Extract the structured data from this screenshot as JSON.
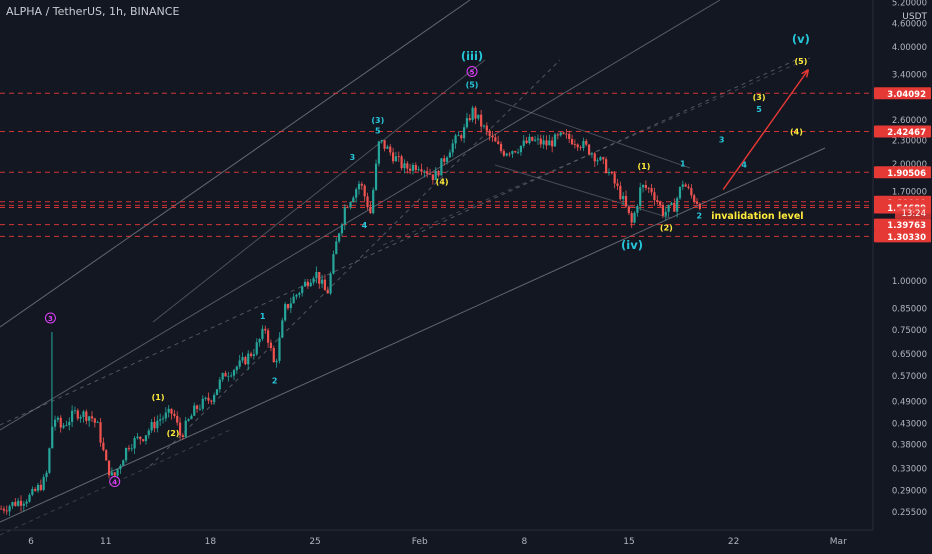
{
  "header": {
    "symbol": "ALPHA / TetherUS",
    "interval": "1h",
    "exchange": "BINANCE",
    "currency": "USDT"
  },
  "colors": {
    "background": "#131722",
    "up_candle": "#26a69a",
    "down_candle": "#ef5350",
    "wave_cyan": "#26c6da",
    "wave_yellow": "#ffeb3b",
    "wave_magenta": "#e040fb",
    "level_red": "#e53935",
    "trend_line": "#787b86",
    "target_arrow": "#e53935"
  },
  "chart_data": {
    "type": "candlestick",
    "y_scale": "log",
    "y_ticks": [
      "5.20000",
      "4.60000",
      "4.00000",
      "3.40000",
      "2.60000",
      "2.30000",
      "2.00000",
      "1.70000",
      "1.00000",
      "0.85000",
      "0.75000",
      "0.65000",
      "0.57000",
      "0.49000",
      "0.43000",
      "0.38000",
      "0.33000",
      "0.29000",
      "0.25500"
    ],
    "y_tick_values": [
      5.2,
      4.6,
      4.0,
      3.4,
      2.6,
      2.3,
      2.0,
      1.7,
      1.0,
      0.85,
      0.75,
      0.65,
      0.57,
      0.49,
      0.43,
      0.38,
      0.33,
      0.29,
      0.255
    ],
    "x_ticks": [
      {
        "label": "6",
        "day": 6
      },
      {
        "label": "11",
        "day": 11
      },
      {
        "label": "18",
        "day": 18
      },
      {
        "label": "25",
        "day": 25
      },
      {
        "label": "Feb",
        "day": 32
      },
      {
        "label": "8",
        "day": 39
      },
      {
        "label": "15",
        "day": 46
      },
      {
        "label": "22",
        "day": 53
      },
      {
        "label": "Mar",
        "day": 60
      }
    ],
    "price_levels": [
      {
        "label": "3.04092",
        "value": 3.04092
      },
      {
        "label": "2.42467",
        "value": 2.42467
      },
      {
        "label": "1.90506",
        "value": 1.90506
      },
      {
        "label": "1.60000",
        "value": 1.6
      },
      {
        "label": "1.56629",
        "value": 1.56629
      },
      {
        "label": "1.54689",
        "value": 1.54689
      },
      {
        "label": "1.39763",
        "value": 1.39763
      },
      {
        "label": "1.30330",
        "value": 1.3033
      }
    ],
    "countdown": "13:24",
    "price_path": [
      {
        "day": 4.0,
        "price": 0.26
      },
      {
        "day": 5.0,
        "price": 0.27
      },
      {
        "day": 6.0,
        "price": 0.28
      },
      {
        "day": 7.0,
        "price": 0.31
      },
      {
        "day": 7.5,
        "price": 0.45
      },
      {
        "day": 8.0,
        "price": 0.42
      },
      {
        "day": 9.0,
        "price": 0.46
      },
      {
        "day": 10.0,
        "price": 0.45
      },
      {
        "day": 10.5,
        "price": 0.42
      },
      {
        "day": 11.0,
        "price": 0.34
      },
      {
        "day": 11.5,
        "price": 0.31
      },
      {
        "day": 12.5,
        "price": 0.38
      },
      {
        "day": 13.5,
        "price": 0.4
      },
      {
        "day": 14.5,
        "price": 0.44
      },
      {
        "day": 15.5,
        "price": 0.46
      },
      {
        "day": 16.0,
        "price": 0.4
      },
      {
        "day": 17.0,
        "price": 0.47
      },
      {
        "day": 18.0,
        "price": 0.5
      },
      {
        "day": 19.0,
        "price": 0.58
      },
      {
        "day": 20.0,
        "price": 0.61
      },
      {
        "day": 21.0,
        "price": 0.67
      },
      {
        "day": 21.7,
        "price": 0.76
      },
      {
        "day": 22.3,
        "price": 0.6
      },
      {
        "day": 23.0,
        "price": 0.85
      },
      {
        "day": 24.0,
        "price": 0.95
      },
      {
        "day": 25.0,
        "price": 1.06
      },
      {
        "day": 25.8,
        "price": 0.92
      },
      {
        "day": 26.5,
        "price": 1.3
      },
      {
        "day": 27.0,
        "price": 1.55
      },
      {
        "day": 28.0,
        "price": 1.8
      },
      {
        "day": 28.7,
        "price": 1.5
      },
      {
        "day": 29.3,
        "price": 2.3
      },
      {
        "day": 30.0,
        "price": 2.15
      },
      {
        "day": 31.0,
        "price": 1.95
      },
      {
        "day": 32.0,
        "price": 2.0
      },
      {
        "day": 33.0,
        "price": 1.85
      },
      {
        "day": 34.0,
        "price": 2.2
      },
      {
        "day": 35.0,
        "price": 2.45
      },
      {
        "day": 35.5,
        "price": 2.75
      },
      {
        "day": 36.5,
        "price": 2.4
      },
      {
        "day": 37.5,
        "price": 2.15
      },
      {
        "day": 38.5,
        "price": 2.2
      },
      {
        "day": 39.5,
        "price": 2.3
      },
      {
        "day": 40.5,
        "price": 2.25
      },
      {
        "day": 41.5,
        "price": 2.35
      },
      {
        "day": 42.5,
        "price": 2.3
      },
      {
        "day": 43.5,
        "price": 2.15
      },
      {
        "day": 44.5,
        "price": 1.95
      },
      {
        "day": 45.5,
        "price": 1.65
      },
      {
        "day": 46.2,
        "price": 1.4
      },
      {
        "day": 46.8,
        "price": 1.75
      },
      {
        "day": 47.5,
        "price": 1.72
      },
      {
        "day": 48.3,
        "price": 1.5
      },
      {
        "day": 49.0,
        "price": 1.55
      },
      {
        "day": 49.6,
        "price": 1.8
      },
      {
        "day": 50.2,
        "price": 1.65
      },
      {
        "day": 50.8,
        "price": 1.58
      }
    ],
    "wave_labels": [
      {
        "text": "(iii)",
        "day": 35.5,
        "price": 3.7,
        "color": "cyan",
        "size": "large"
      },
      {
        "text": "5",
        "day": 35.5,
        "price": 3.4,
        "color": "magenta",
        "circled": true
      },
      {
        "text": "(5)",
        "day": 35.5,
        "price": 3.15,
        "color": "cyan"
      },
      {
        "text": "(iv)",
        "day": 46.2,
        "price": 1.21,
        "color": "cyan",
        "size": "large"
      },
      {
        "text": "(v)",
        "day": 57.5,
        "price": 4.1,
        "color": "cyan",
        "size": "large"
      },
      {
        "text": "(5)",
        "day": 57.5,
        "price": 3.62,
        "color": "yellow"
      },
      {
        "text": "(3)",
        "day": 54.7,
        "price": 2.92,
        "color": "yellow"
      },
      {
        "text": "5",
        "day": 54.7,
        "price": 2.72,
        "color": "cyan"
      },
      {
        "text": "(4)",
        "day": 57.2,
        "price": 2.38,
        "color": "yellow"
      },
      {
        "text": "3",
        "day": 52.2,
        "price": 2.27,
        "color": "cyan"
      },
      {
        "text": "4",
        "day": 53.7,
        "price": 1.96,
        "color": "cyan"
      },
      {
        "text": "(1)",
        "day": 47.0,
        "price": 1.94,
        "color": "yellow"
      },
      {
        "text": "1",
        "day": 49.6,
        "price": 1.97,
        "color": "cyan"
      },
      {
        "text": "2",
        "day": 50.7,
        "price": 1.45,
        "color": "cyan"
      },
      {
        "text": "(2)",
        "day": 48.5,
        "price": 1.35,
        "color": "yellow"
      },
      {
        "text": "(3)",
        "day": 29.2,
        "price": 2.55,
        "color": "cyan"
      },
      {
        "text": "5",
        "day": 29.2,
        "price": 2.4,
        "color": "cyan"
      },
      {
        "text": "3",
        "day": 27.5,
        "price": 2.05,
        "color": "cyan"
      },
      {
        "text": "(4)",
        "day": 33.5,
        "price": 1.77,
        "color": "yellow"
      },
      {
        "text": "4",
        "day": 28.3,
        "price": 1.37,
        "color": "cyan"
      },
      {
        "text": "1",
        "day": 21.5,
        "price": 0.8,
        "color": "cyan"
      },
      {
        "text": "2",
        "day": 22.3,
        "price": 0.545,
        "color": "cyan"
      },
      {
        "text": "(1)",
        "day": 14.5,
        "price": 0.495,
        "color": "yellow"
      },
      {
        "text": "(2)",
        "day": 15.5,
        "price": 0.4,
        "color": "yellow"
      },
      {
        "text": "3",
        "day": 7.3,
        "price": 0.79,
        "color": "magenta",
        "circled": true
      },
      {
        "text": "4",
        "day": 11.6,
        "price": 0.3,
        "color": "magenta",
        "circled": true
      }
    ],
    "annotation": {
      "text": "invalidation level",
      "day": 51.5,
      "price": 1.47,
      "color": "yellow"
    },
    "target_arrow": {
      "from": {
        "day": 52.3,
        "price": 1.72
      },
      "to": {
        "day": 58.0,
        "price": 3.5
      }
    }
  }
}
